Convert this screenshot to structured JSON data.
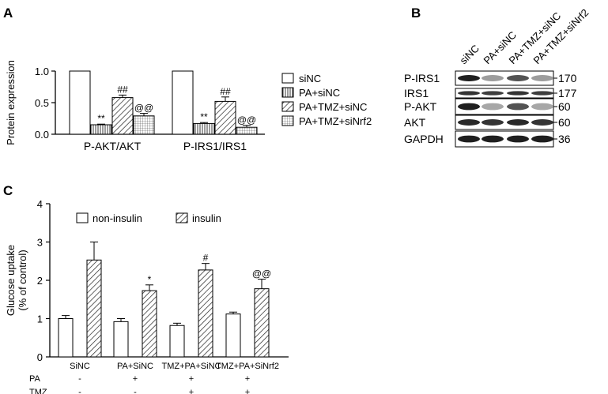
{
  "panels": {
    "a_letter": "A",
    "b_letter": "B",
    "c_letter": "C"
  },
  "chart_data": [
    {
      "type": "bar",
      "panel": "A",
      "ylabel": "Protein expression",
      "ylim": [
        0,
        1.0
      ],
      "yticks": [
        "0.0",
        "0.5",
        "1.0"
      ],
      "categories": [
        "P-AKT/AKT",
        "P-IRS1/IRS1"
      ],
      "series": [
        {
          "name": "siNC",
          "pattern": "white",
          "values": [
            1.0,
            1.0
          ],
          "errors": [
            0,
            0
          ],
          "sig": [
            "",
            ""
          ]
        },
        {
          "name": "PA+siNC",
          "pattern": "vlines",
          "values": [
            0.15,
            0.17
          ],
          "errors": [
            0.01,
            0.015
          ],
          "sig": [
            "**",
            "**"
          ]
        },
        {
          "name": "PA+TMZ+siNC",
          "pattern": "diag",
          "values": [
            0.58,
            0.52
          ],
          "errors": [
            0.04,
            0.07
          ],
          "sig": [
            "##",
            "##"
          ]
        },
        {
          "name": "PA+TMZ+siNrf2",
          "pattern": "grid",
          "values": [
            0.29,
            0.11
          ],
          "errors": [
            0.04,
            0.03
          ],
          "sig": [
            "@@",
            "@@"
          ]
        }
      ],
      "legend_position": "right"
    },
    {
      "type": "bar",
      "panel": "C",
      "ylabel_lines": [
        "Glucose uptake",
        "(% of control)"
      ],
      "ylim": [
        0,
        4
      ],
      "yticks": [
        "0",
        "1",
        "2",
        "3",
        "4"
      ],
      "categories": [
        "SiNC",
        "PA+SiNC",
        "TMZ+PA+SiNC",
        "TMZ+PA+SiNrf2"
      ],
      "series": [
        {
          "name": "non-insulin",
          "pattern": "white",
          "values": [
            1.0,
            0.92,
            0.82,
            1.12
          ],
          "errors": [
            0.08,
            0.08,
            0.06,
            0.05
          ],
          "sig": [
            "",
            "",
            "",
            ""
          ]
        },
        {
          "name": "insulin",
          "pattern": "diag",
          "values": [
            2.53,
            1.73,
            2.27,
            1.78
          ],
          "errors": [
            0.47,
            0.15,
            0.17,
            0.25
          ],
          "sig": [
            "",
            "*",
            "#",
            "@@"
          ]
        }
      ],
      "legend_position": "top",
      "conditions": [
        {
          "label": "PA",
          "marks": [
            "-",
            "+",
            "+",
            "+"
          ]
        },
        {
          "label": "TMZ",
          "marks": [
            "-",
            "-",
            "+",
            "+"
          ]
        }
      ]
    }
  ],
  "blot": {
    "lanes": [
      "siNC",
      "PA+siNC",
      "PA+TMZ+siNC",
      "PA+TMZ+siNrf2"
    ],
    "rows": [
      {
        "label": "P-IRS1",
        "kda": "170",
        "intensity": [
          0.95,
          0.35,
          0.7,
          0.35
        ]
      },
      {
        "label": "IRS1",
        "kda": "177",
        "intensity": [
          0.85,
          0.8,
          0.85,
          0.8
        ]
      },
      {
        "label": "P-AKT",
        "kda": "60",
        "intensity": [
          0.95,
          0.3,
          0.7,
          0.3
        ]
      },
      {
        "label": "AKT",
        "kda": "60",
        "intensity": [
          0.9,
          0.85,
          0.9,
          0.85
        ]
      },
      {
        "label": "GAPDH",
        "kda": "36",
        "intensity": [
          0.95,
          0.95,
          0.95,
          0.95
        ]
      }
    ]
  }
}
